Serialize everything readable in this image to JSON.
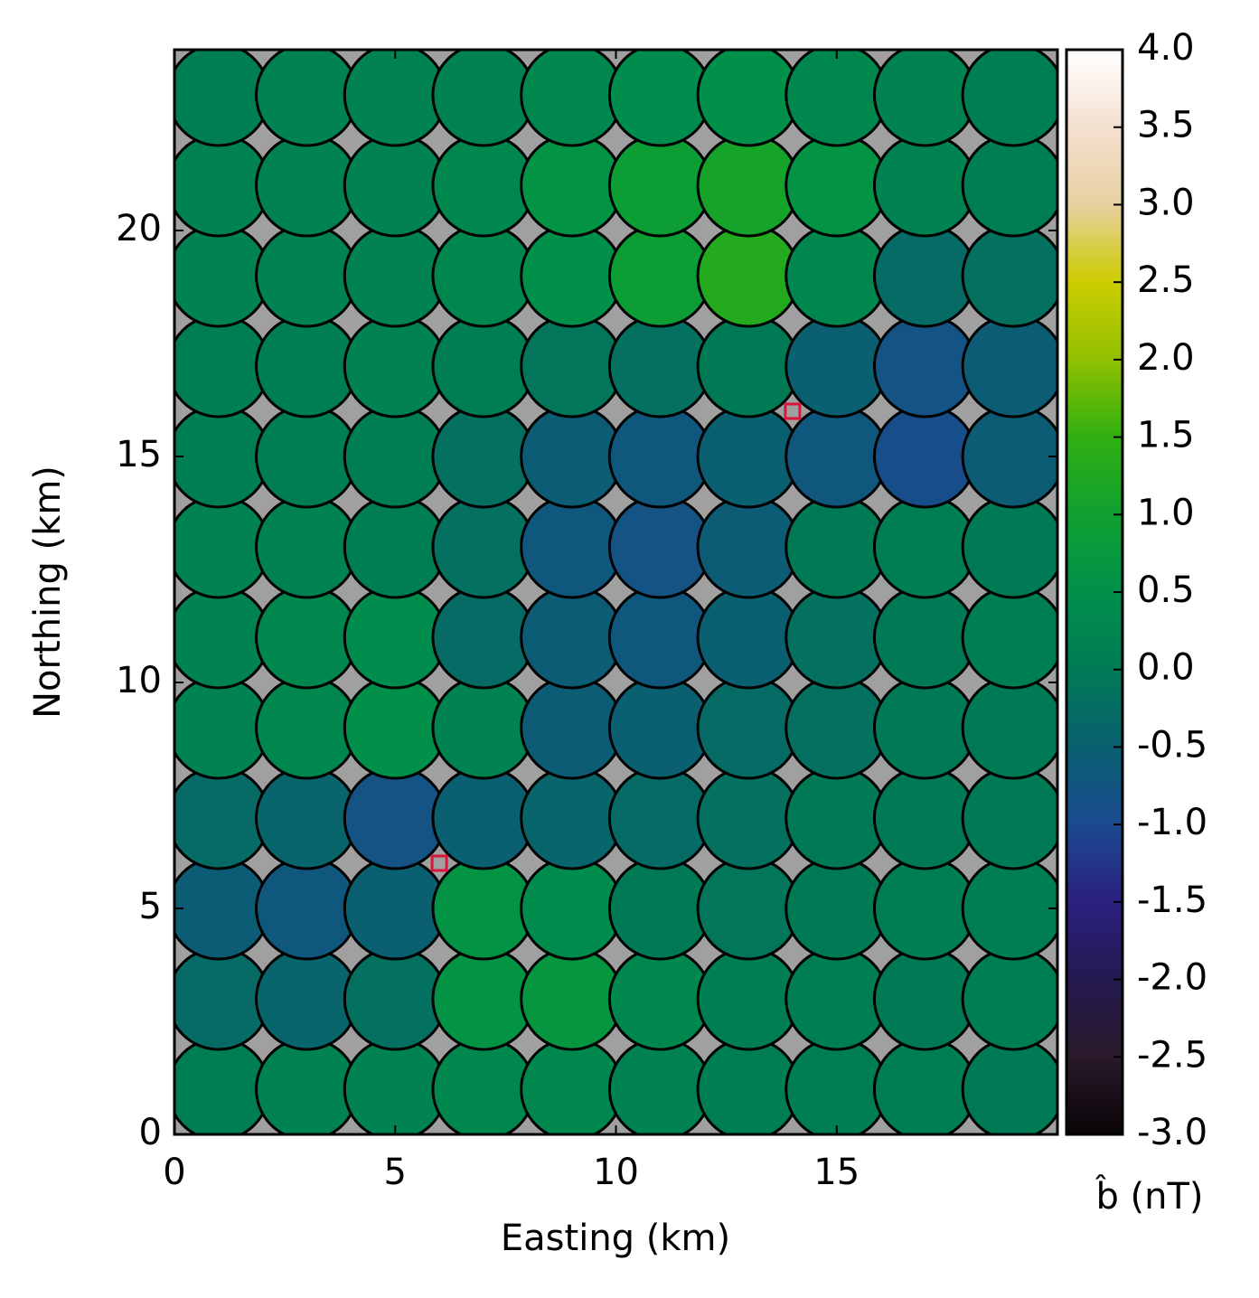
{
  "chart_data": {
    "type": "scatter",
    "xlabel": "Easting (km)",
    "ylabel": "Northing (km)",
    "xlim": [
      0,
      20
    ],
    "ylim": [
      0,
      24
    ],
    "xticks": [
      0,
      5,
      10,
      15
    ],
    "yticks": [
      0,
      5,
      10,
      15,
      20
    ],
    "background": "#a0a0a0",
    "x": [
      1,
      3,
      5,
      7,
      9,
      11,
      13,
      15,
      17,
      19
    ],
    "y": [
      1,
      3,
      5,
      7,
      9,
      11,
      13,
      15,
      17,
      19,
      21,
      23
    ],
    "values": [
      [
        0.1,
        0.2,
        0.2,
        0.3,
        0.3,
        0.2,
        0.1,
        0.1,
        0.1,
        0.0
      ],
      [
        -0.3,
        -0.4,
        -0.2,
        0.6,
        0.7,
        0.3,
        0.1,
        0.1,
        0.0,
        0.1
      ],
      [
        -0.6,
        -0.7,
        -0.5,
        0.6,
        0.4,
        0.0,
        -0.1,
        0.0,
        0.1,
        0.1
      ],
      [
        -0.3,
        -0.4,
        -0.8,
        -0.5,
        -0.4,
        -0.3,
        -0.2,
        0.0,
        0.0,
        0.0
      ],
      [
        0.2,
        0.3,
        0.5,
        0.2,
        -0.6,
        -0.5,
        -0.3,
        -0.2,
        0.0,
        0.0
      ],
      [
        0.2,
        0.3,
        0.4,
        -0.3,
        -0.6,
        -0.7,
        -0.5,
        -0.2,
        0.0,
        0.1
      ],
      [
        0.2,
        0.2,
        0.1,
        -0.2,
        -0.7,
        -0.8,
        -0.6,
        0.0,
        0.1,
        0.0
      ],
      [
        0.1,
        0.1,
        0.1,
        -0.2,
        -0.6,
        -0.7,
        -0.5,
        -0.7,
        -0.9,
        -0.6
      ],
      [
        0.1,
        0.1,
        0.2,
        0.1,
        -0.1,
        -0.2,
        0.0,
        -0.5,
        -0.8,
        -0.6
      ],
      [
        0.2,
        0.2,
        0.2,
        0.3,
        0.5,
        0.9,
        1.3,
        0.3,
        -0.3,
        -0.2
      ],
      [
        0.2,
        0.2,
        0.2,
        0.3,
        0.6,
        0.9,
        1.1,
        0.6,
        0.2,
        0.1
      ],
      [
        0.1,
        0.2,
        0.2,
        0.2,
        0.3,
        0.4,
        0.5,
        0.3,
        0.2,
        0.1
      ]
    ],
    "markers": {
      "x": [
        14,
        6
      ],
      "y": [
        16,
        6
      ],
      "color": "#dc143c"
    },
    "colorbar": {
      "label": "b̂ (nT)",
      "clim": [
        -3,
        4
      ],
      "colormap": [
        "#0a0508",
        "#2a1a2a",
        "#241a50",
        "#2a2080",
        "#1a4a90",
        "#0a6070",
        "#007a55",
        "#00904a",
        "#10a030",
        "#30b010",
        "#90c000",
        "#cccc00",
        "#e8d0a0",
        "#f4e0d0",
        "#ffffff"
      ],
      "ticks": [
        {
          "value": -3,
          "label": "-3.0"
        },
        -2.5,
        {
          "value": -2,
          "label": "-2.0"
        },
        -1.5,
        {
          "value": -1,
          "label": "-1.0"
        },
        -0.5,
        {
          "value": 0,
          "label": "0.0"
        },
        0.5,
        {
          "value": 1,
          "label": "1.0"
        },
        1.5,
        {
          "value": 2,
          "label": "2.0"
        },
        2.5,
        {
          "value": 3,
          "label": "3.0"
        },
        3.5,
        {
          "value": 4,
          "label": "4.0"
        }
      ]
    }
  }
}
